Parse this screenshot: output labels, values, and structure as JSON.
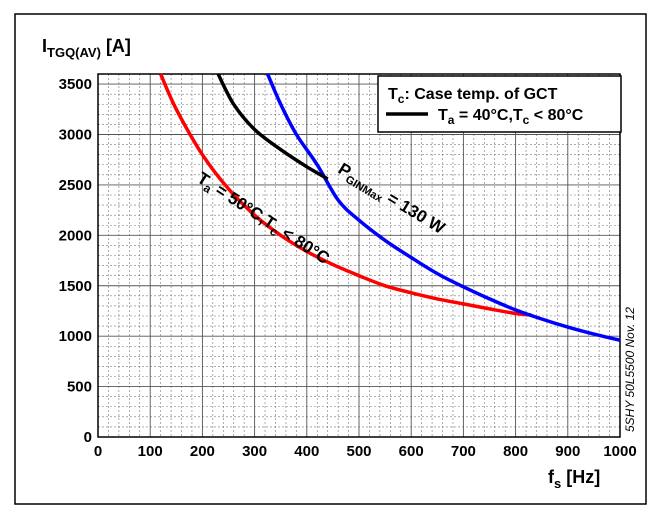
{
  "chart_data": {
    "type": "line",
    "title": "",
    "ylabel": {
      "main": "I",
      "sub": "TGQ(AV)",
      "unit": " [A]"
    },
    "xlabel": {
      "main": "f",
      "sub": "s",
      "unit": " [Hz]"
    },
    "xlim": [
      0,
      1000
    ],
    "ylim": [
      0,
      3600
    ],
    "x_ticks": [
      0,
      100,
      200,
      300,
      400,
      500,
      600,
      700,
      800,
      900,
      1000
    ],
    "y_ticks": [
      0,
      500,
      1000,
      1500,
      2000,
      2500,
      3000,
      3500
    ],
    "grid": true,
    "legend": {
      "placement": "top-right",
      "header": {
        "main": "T",
        "sub": "c",
        "rest": ": Case temp. of GCT"
      },
      "entry": {
        "a": "T",
        "a_sub": "a",
        "a_rest": " = 40°C,T",
        "b_sub": "c",
        "b_rest": " < 80°C",
        "color": "#000000"
      }
    },
    "series": [
      {
        "color": "#ff0000",
        "points": [
          [
            120,
            3600
          ],
          [
            150,
            3250
          ],
          [
            200,
            2800
          ],
          [
            250,
            2460
          ],
          [
            300,
            2200
          ],
          [
            350,
            2000
          ],
          [
            400,
            1840
          ],
          [
            450,
            1710
          ],
          [
            500,
            1600
          ],
          [
            550,
            1500
          ],
          [
            600,
            1430
          ],
          [
            650,
            1370
          ],
          [
            700,
            1320
          ],
          [
            750,
            1270
          ],
          [
            800,
            1225
          ],
          [
            830,
            1210
          ]
        ]
      },
      {
        "color": "#0000ff",
        "points": [
          [
            325,
            3600
          ],
          [
            350,
            3300
          ],
          [
            380,
            3000
          ],
          [
            420,
            2700
          ],
          [
            460,
            2350
          ],
          [
            500,
            2150
          ],
          [
            550,
            1950
          ],
          [
            600,
            1780
          ],
          [
            650,
            1620
          ],
          [
            700,
            1490
          ],
          [
            750,
            1370
          ],
          [
            800,
            1260
          ],
          [
            850,
            1170
          ],
          [
            900,
            1090
          ],
          [
            950,
            1020
          ],
          [
            1000,
            960
          ]
        ]
      },
      {
        "color": "#000000",
        "points": [
          [
            230,
            3600
          ],
          [
            260,
            3300
          ],
          [
            300,
            3050
          ],
          [
            350,
            2850
          ],
          [
            400,
            2680
          ],
          [
            440,
            2560
          ]
        ]
      }
    ],
    "annotations": {
      "red_label": {
        "a": "T",
        "a_sub": "a",
        "a_rest": " = 50°C,T",
        "b_sub": "c",
        "b_rest": " < 80°C"
      },
      "blue_label": {
        "a": "P",
        "a_sub": "GINMax",
        "a_rest": " = 130 W"
      }
    },
    "side_note": "5SHY 50L5500 Nov. 12"
  }
}
